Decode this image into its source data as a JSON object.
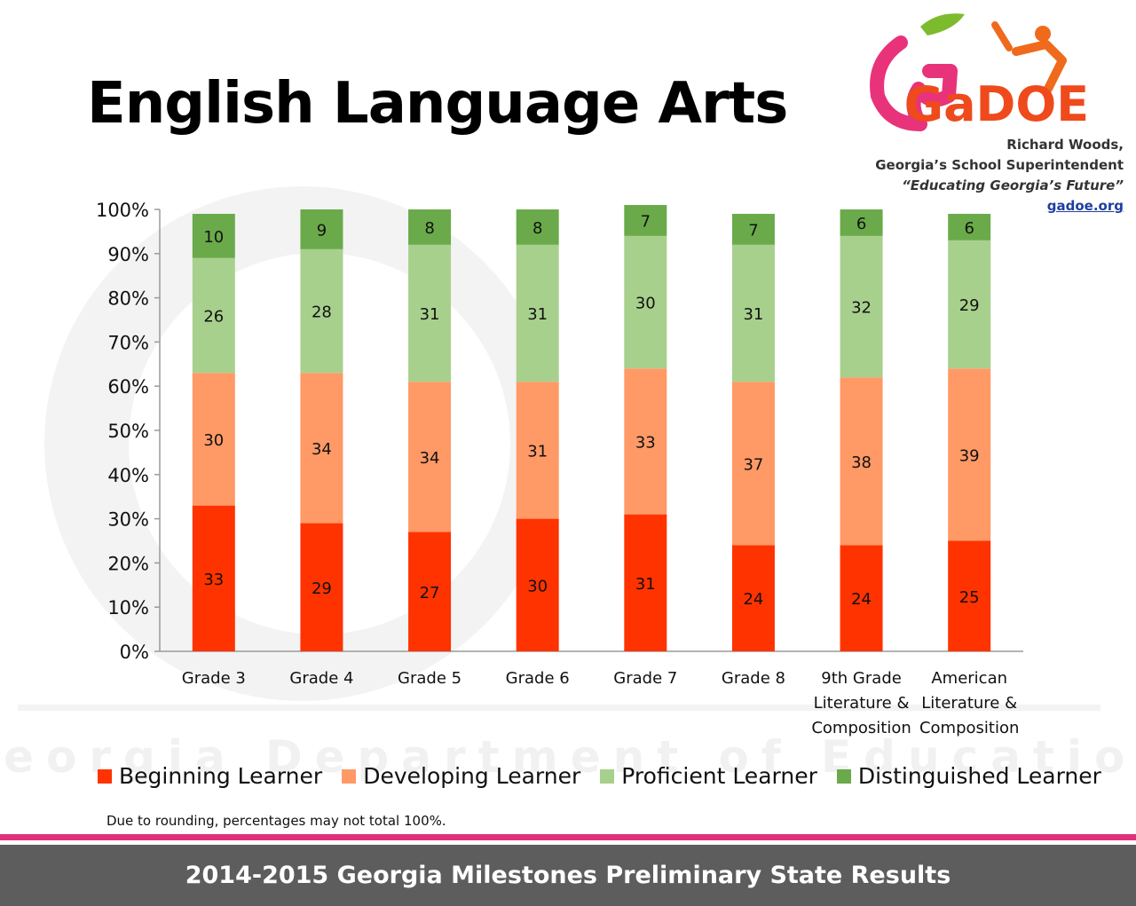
{
  "title": "English Language Arts",
  "superintendent": {
    "name": "Richard Woods,",
    "role": "Georgia’s School Superintendent",
    "motto": "“Educating Georgia’s Future”",
    "link": "gadoe.org"
  },
  "logo_text": "GaDOE",
  "watermark_text": "Georgia Department of Education",
  "note": "Due to rounding,  percentages may not total 100%.",
  "footer": "2014-2015 Georgia Milestones Preliminary State Results",
  "colors": {
    "beginning": "#ff3300",
    "developing": "#ff9966",
    "proficient": "#a8d08d",
    "distinguished": "#6aaa4a"
  },
  "chart_data": {
    "type": "bar",
    "stacked": true,
    "categories": [
      [
        "Grade 3"
      ],
      [
        "Grade 4"
      ],
      [
        "Grade 5"
      ],
      [
        "Grade 6"
      ],
      [
        "Grade 7"
      ],
      [
        "Grade 8"
      ],
      [
        "9th Grade",
        "Literature &",
        "Composition"
      ],
      [
        "American",
        "Literature &",
        "Composition"
      ]
    ],
    "series": [
      {
        "name": "Beginning Learner",
        "values": [
          33,
          29,
          27,
          30,
          31,
          24,
          24,
          25
        ]
      },
      {
        "name": "Developing Learner",
        "values": [
          30,
          34,
          34,
          31,
          33,
          37,
          38,
          39
        ]
      },
      {
        "name": "Proficient Learner",
        "values": [
          26,
          28,
          31,
          31,
          30,
          31,
          32,
          29
        ]
      },
      {
        "name": "Distinguished Learner",
        "values": [
          10,
          9,
          8,
          8,
          7,
          7,
          6,
          6
        ]
      }
    ],
    "y_ticks": [
      "0%",
      "10%",
      "20%",
      "30%",
      "40%",
      "50%",
      "60%",
      "70%",
      "80%",
      "90%",
      "100%"
    ],
    "ylim": [
      0,
      100
    ],
    "legend_position": "bottom",
    "grid": false
  }
}
